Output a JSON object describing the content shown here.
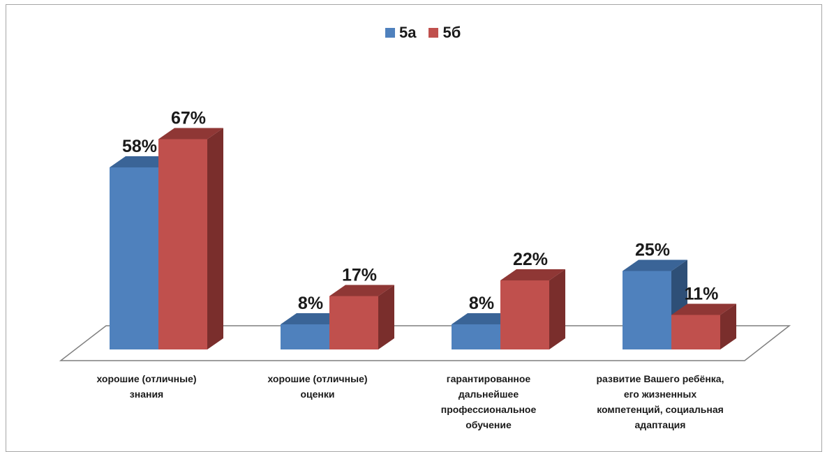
{
  "chart_data": {
    "type": "bar",
    "title": "",
    "xlabel": "",
    "ylabel": "",
    "ylim": [
      0,
      70
    ],
    "grid": false,
    "legend_position": "top",
    "categories": [
      "хорошие (отличные) знания",
      "хорошие (отличные) оценки",
      "гарантированное дальнейшее профессиональное обучение",
      "развитие Вашего ребёнка, его жизненных компетенций, социальная адаптация"
    ],
    "category_label_lines": [
      [
        "хорошие (отличные)",
        "знания"
      ],
      [
        "хорошие (отличные)",
        "оценки"
      ],
      [
        "гарантированное",
        "дальнейшее",
        "профессиональное",
        "обучение"
      ],
      [
        "развитие Вашего ребёнка,",
        "его жизненных",
        "компетенций, социальная",
        "адаптация"
      ]
    ],
    "series": [
      {
        "name": "5а",
        "values": [
          58,
          8,
          8,
          25
        ],
        "labels": [
          "58%",
          "8%",
          "8%",
          "25%"
        ],
        "color": "#4f81bd"
      },
      {
        "name": "5б",
        "values": [
          67,
          17,
          22,
          11
        ],
        "labels": [
          "67%",
          "17%",
          "22%",
          "11%"
        ],
        "color": "#c0504d"
      }
    ]
  }
}
